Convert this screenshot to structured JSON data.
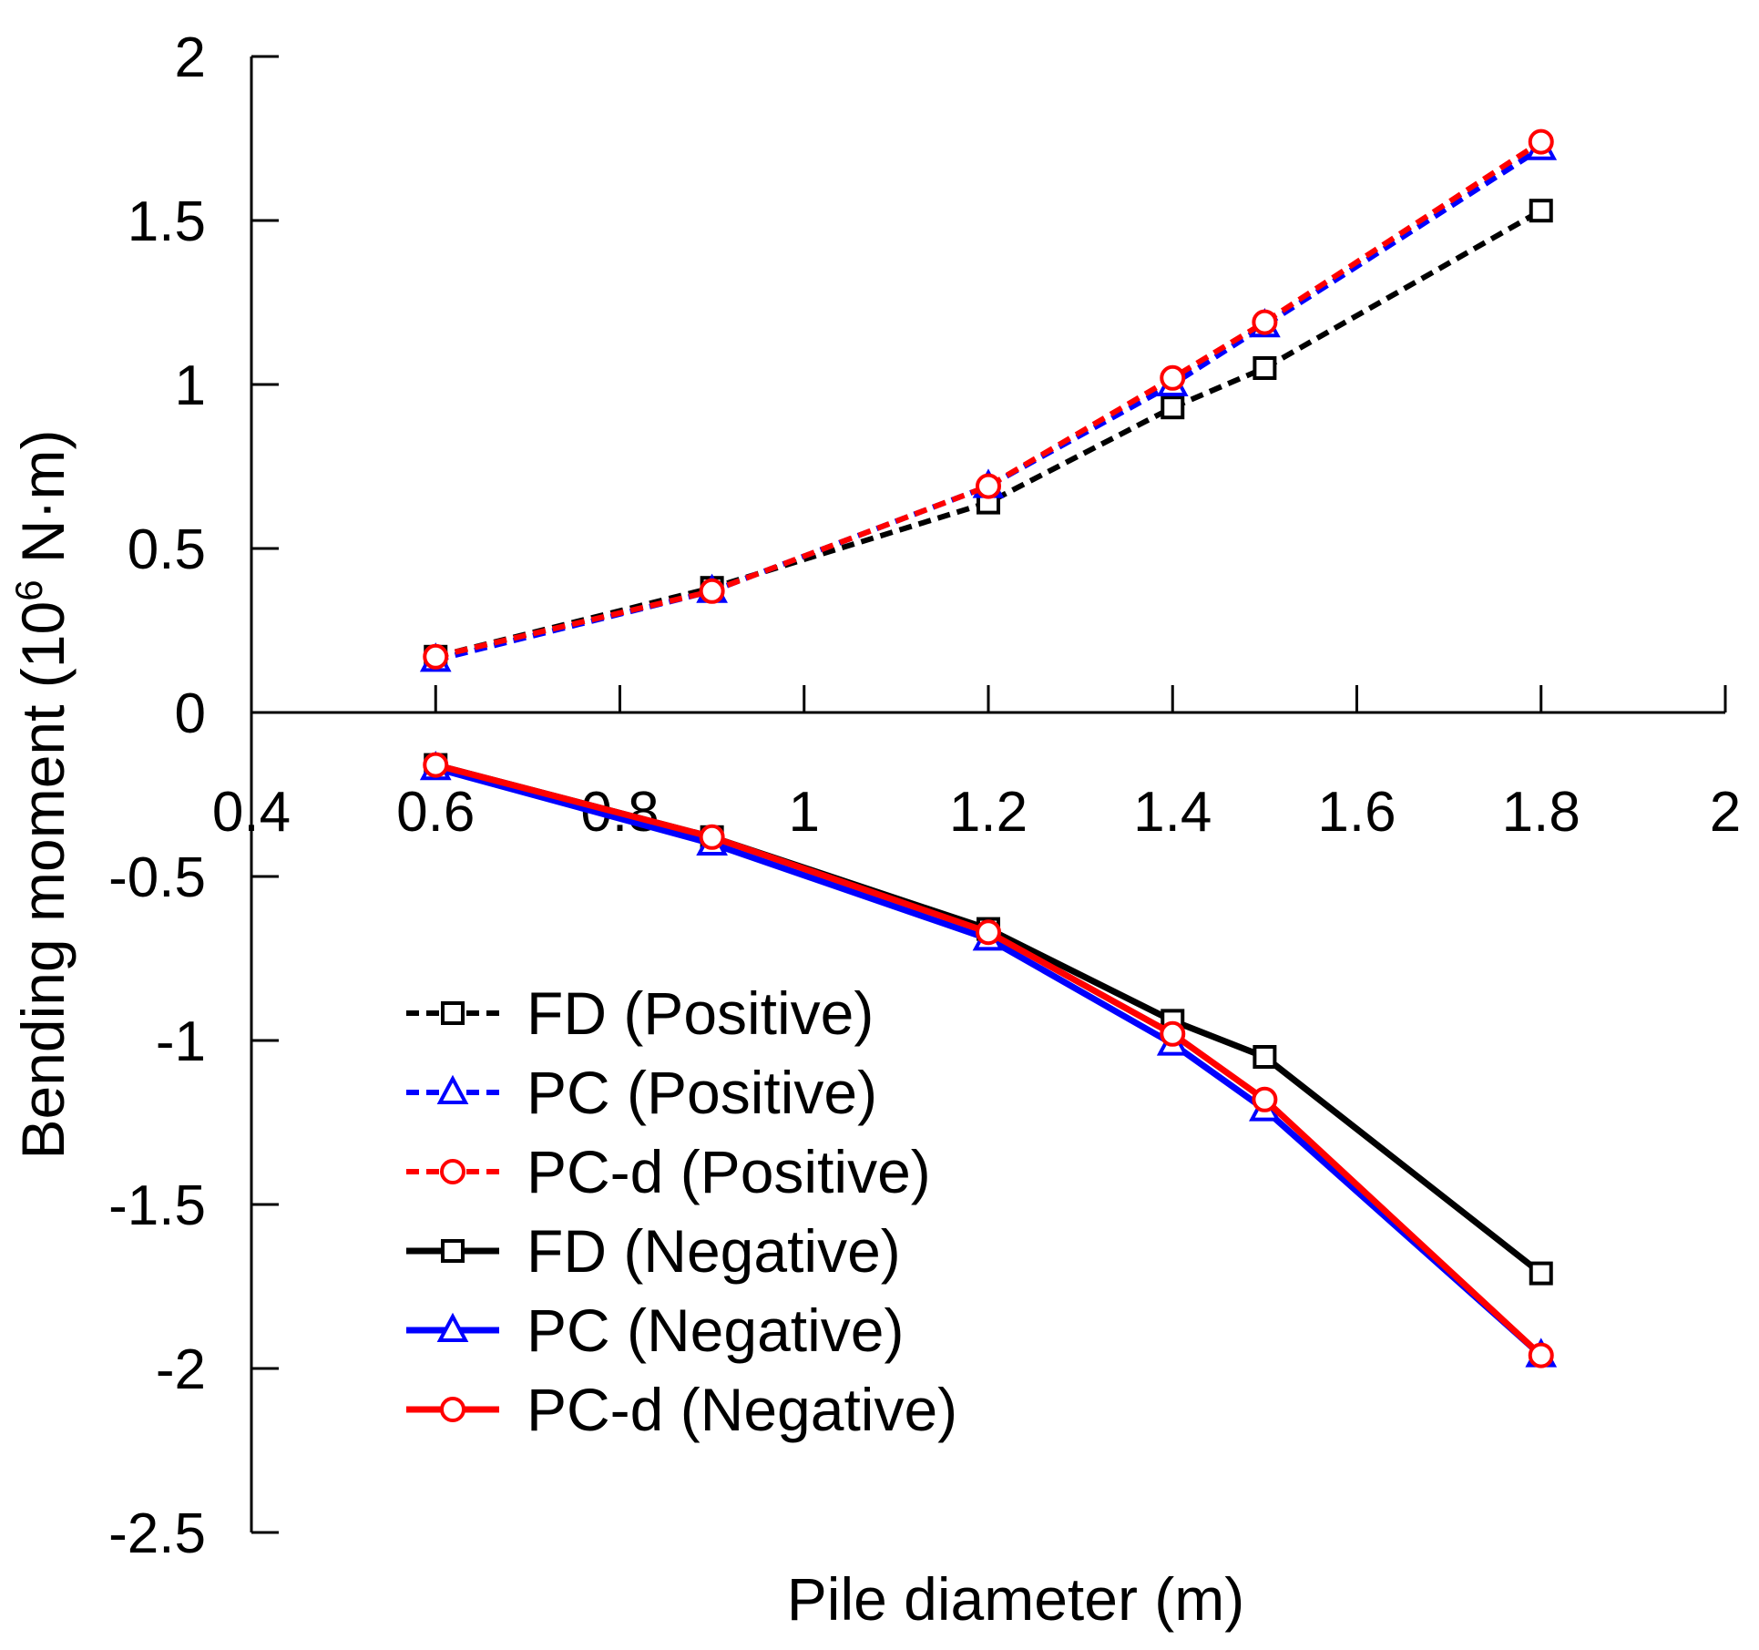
{
  "chart_data": {
    "type": "line",
    "xlabel": "Pile diameter (m)",
    "ylabel_main": "Bending moment (10",
    "ylabel_sup": "6",
    "ylabel_tail": " N·m)",
    "xlim": [
      0.4,
      2.0
    ],
    "ylim": [
      -2.5,
      2.0
    ],
    "x_ticks": [
      "0.4",
      "0.6",
      "0.8",
      "1",
      "1.2",
      "1.4",
      "1.6",
      "1.8",
      "2"
    ],
    "x_tick_values": [
      0.4,
      0.6,
      0.8,
      1.0,
      1.2,
      1.4,
      1.6,
      1.8,
      2.0
    ],
    "y_ticks": [
      "2",
      "1.5",
      "1",
      "0.5",
      "0",
      "-0.5",
      "-1",
      "-1.5",
      "-2",
      "-2.5"
    ],
    "y_tick_values": [
      2.0,
      1.5,
      1.0,
      0.5,
      0.0,
      -0.5,
      -1.0,
      -1.5,
      -2.0,
      -2.5
    ],
    "x": [
      0.6,
      0.9,
      1.2,
      1.4,
      1.5,
      1.8
    ],
    "legend_position": "lower-left",
    "series": [
      {
        "name": "FD (Positive)",
        "values": [
          0.17,
          0.38,
          0.64,
          0.93,
          1.05,
          1.53
        ],
        "color": "#000000",
        "dash": "dashed",
        "marker": "square"
      },
      {
        "name": "PC (Positive)",
        "values": [
          0.16,
          0.37,
          0.69,
          1.0,
          1.18,
          1.72
        ],
        "color": "#0000ff",
        "dash": "dashed",
        "marker": "triangle"
      },
      {
        "name": "PC-d (Positive)",
        "values": [
          0.17,
          0.37,
          0.69,
          1.02,
          1.19,
          1.74
        ],
        "color": "#ff0000",
        "dash": "dashed",
        "marker": "circle"
      },
      {
        "name": "FD (Negative)",
        "values": [
          -0.16,
          -0.38,
          -0.66,
          -0.94,
          -1.05,
          -1.71
        ],
        "color": "#000000",
        "dash": "solid",
        "marker": "square"
      },
      {
        "name": "PC (Negative)",
        "values": [
          -0.17,
          -0.4,
          -0.69,
          -1.01,
          -1.21,
          -1.96
        ],
        "color": "#0000ff",
        "dash": "solid",
        "marker": "triangle"
      },
      {
        "name": "PC-d (Negative)",
        "values": [
          -0.16,
          -0.38,
          -0.67,
          -0.98,
          -1.18,
          -1.96
        ],
        "color": "#ff0000",
        "dash": "solid",
        "marker": "circle"
      }
    ]
  }
}
